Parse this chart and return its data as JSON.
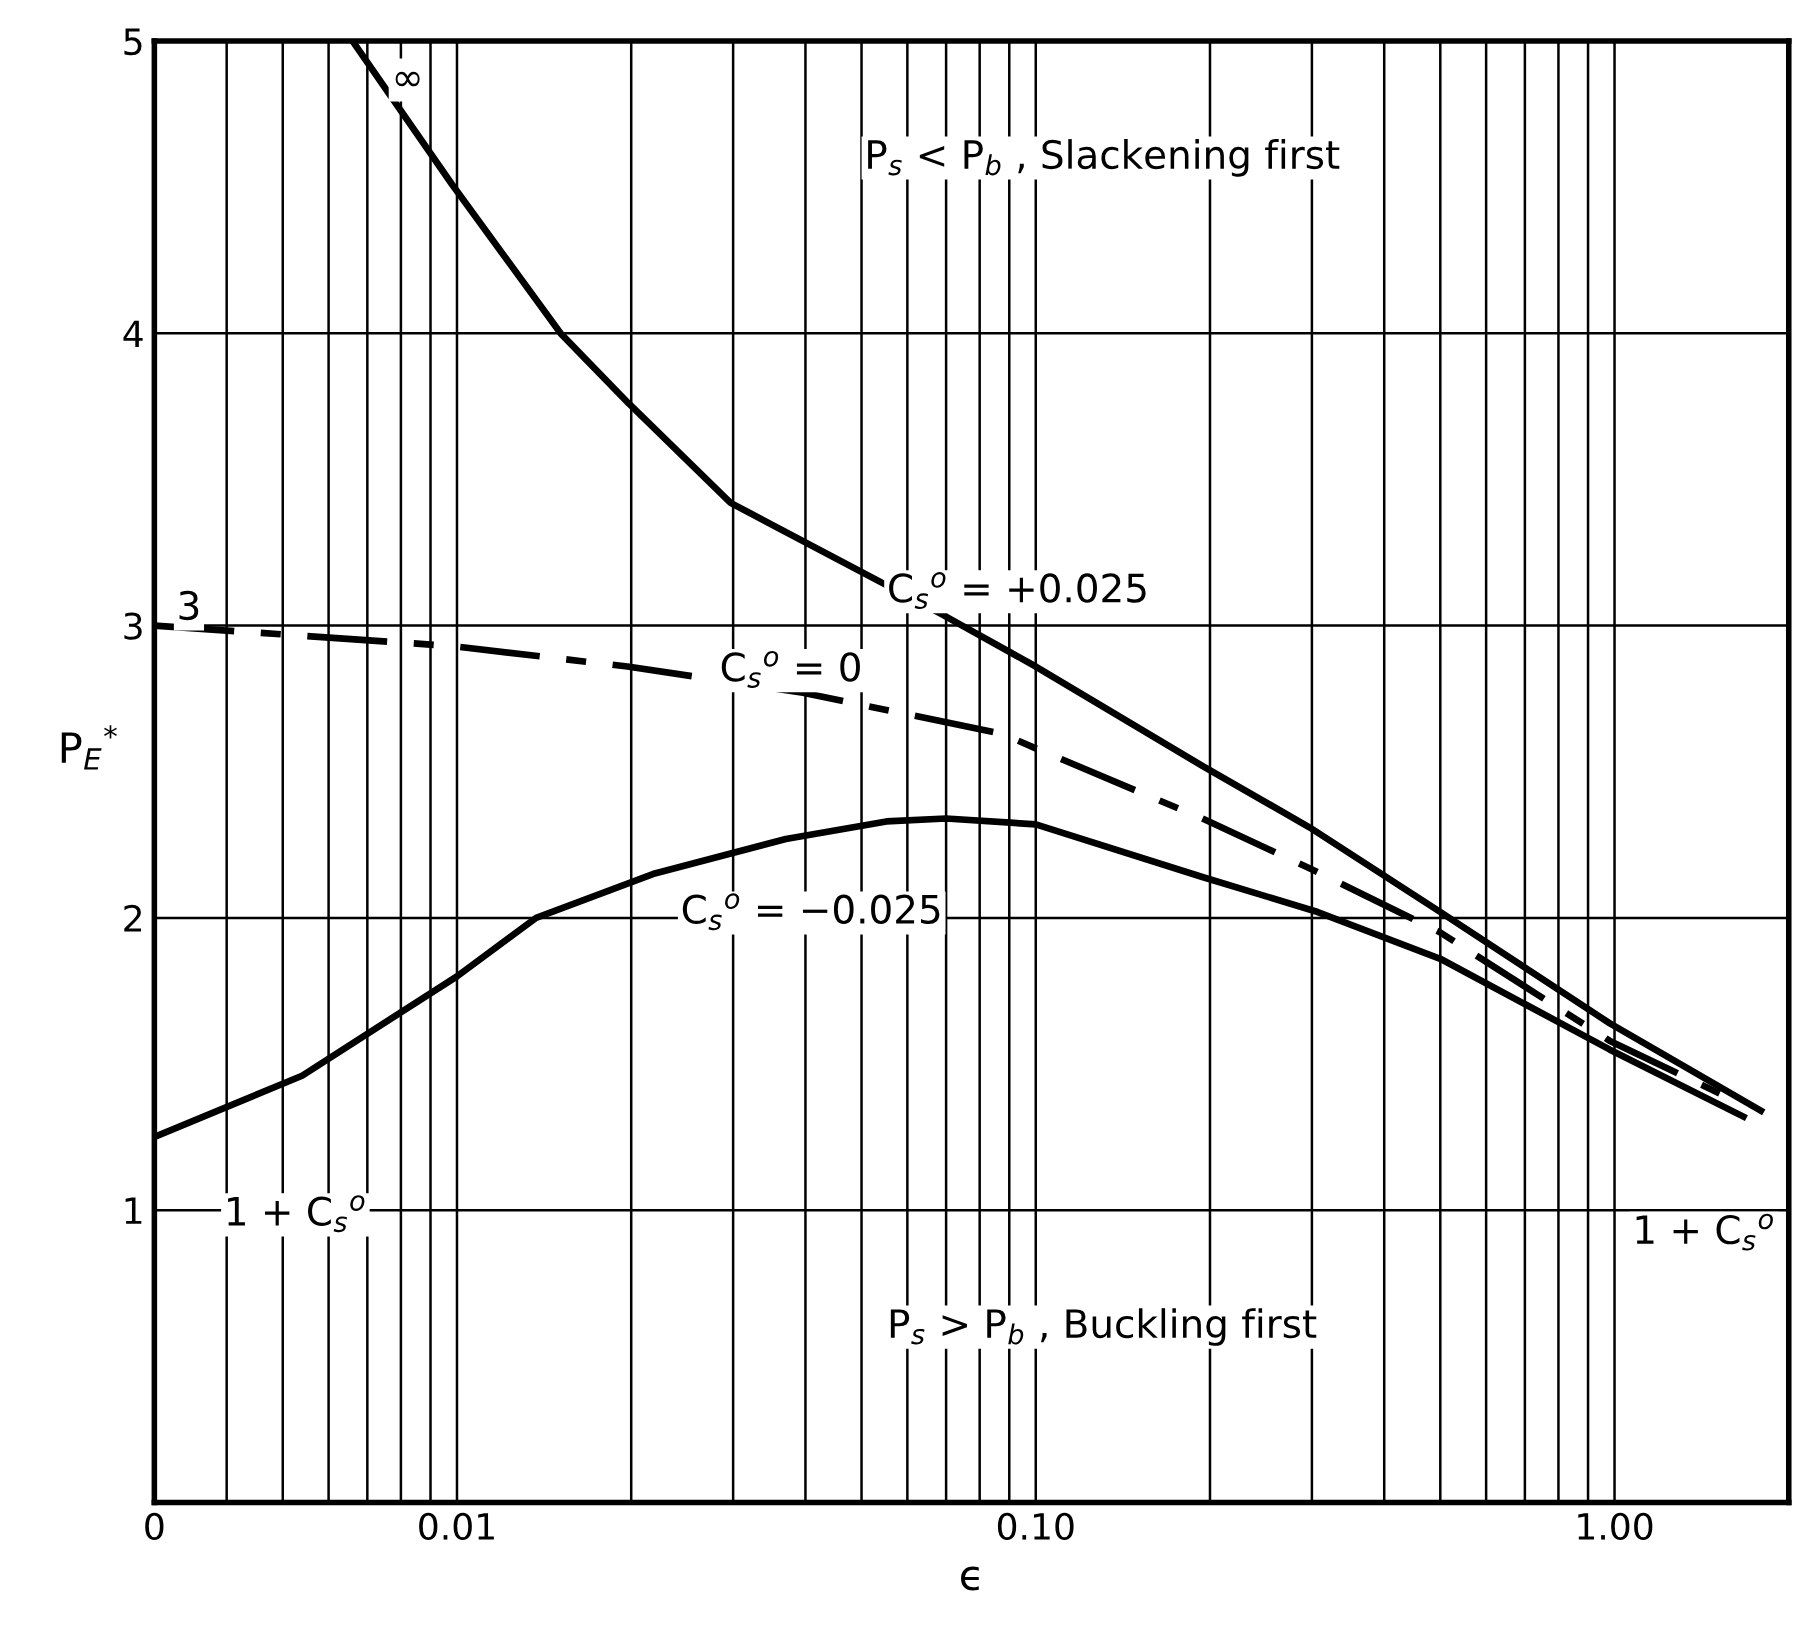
{
  "chart_data": {
    "type": "line",
    "xlabel": "ϵ",
    "ylabel": "P$_{E}$$^{*}$",
    "log": "x",
    "xlim": [
      0.003,
      2
    ],
    "ylim": [
      0,
      5
    ],
    "xticks": [
      {
        "value": 0.003,
        "label": "0"
      },
      {
        "value": 0.01,
        "label": "0.01"
      },
      {
        "value": 0.1,
        "label": "0.10"
      },
      {
        "value": 1,
        "label": "1.00"
      }
    ],
    "yticks": [
      {
        "value": 0,
        "label": null
      },
      1,
      2,
      3,
      4,
      5
    ],
    "grid": true,
    "legend": false,
    "marker": "none",
    "series": [
      {
        "color": "#000000",
        "line_style": "solid",
        "x": [
          0.0066,
          0.0098,
          0.0151,
          0.0198,
          0.0297,
          0.0686,
          0.1,
          0.194,
          0.297,
          0.5,
          0.98,
          1.79
        ],
        "values": [
          5,
          4.51,
          4,
          3.76,
          3.42,
          3.04,
          2.86,
          2.52,
          2.31,
          2.02,
          1.64,
          1.34
        ]
      },
      {
        "color": "#000000",
        "line_style": "dashed",
        "x": [
          0.003,
          0.0098,
          0.0197,
          0.0396,
          0.0875,
          0.1,
          0.194,
          0.297,
          0.5,
          0.98,
          1.67
        ],
        "values": [
          3,
          2.93,
          2.86,
          2.77,
          2.63,
          2.58,
          2.34,
          2.17,
          1.95,
          1.58,
          1.36
        ]
      },
      {
        "color": "#000000",
        "line_style": "solid",
        "x": [
          0.003,
          0.0054,
          0.01,
          0.0137,
          0.0218,
          0.037,
          0.0552,
          0.07,
          0.1,
          0.194,
          0.307,
          0.5,
          0.98,
          1.67
        ],
        "values": [
          1.25,
          1.46,
          1.8,
          2.0,
          2.15,
          2.27,
          2.33,
          2.34,
          2.32,
          2.14,
          2.02,
          1.86,
          1.55,
          1.32
        ]
      }
    ],
    "annotations": [
      {
        "text": "∞",
        "x": 0.0066,
        "y": 5
      },
      {
        "text": "3",
        "x": 0.003,
        "y": 3
      },
      {
        "text": "C$_{s}$$^{o}$ = +0.025",
        "x": 0.069,
        "y": 3.04
      },
      {
        "text": "C$_{s}$$^{o}$ = 0",
        "x": 0.0396,
        "y": 2.77
      },
      {
        "text": "C$_{s}$$^{o}$ = −0.025",
        "x": 0.0218,
        "y": 2.15
      },
      {
        "text": "1 + C$_{s}$$^{o}$",
        "x": 0.003,
        "y": 1.25
      },
      {
        "text": "1 + C$_{s}$$^{o}$",
        "x": 1.67,
        "y": 1.32
      },
      "P$_{s}$ < P$_{b}$ , Slackening first",
      "P$_{s}$ > P$_{b}$ , Buckling first"
    ]
  }
}
